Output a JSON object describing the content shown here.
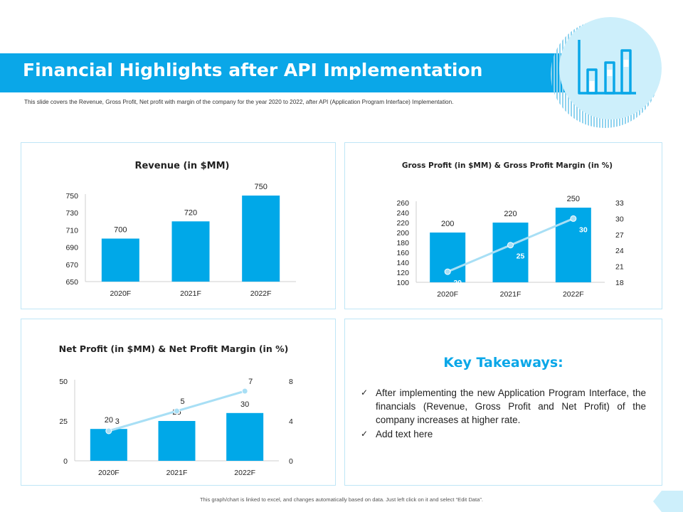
{
  "header": {
    "title": "Financial Highlights after API Implementation",
    "subtitle": "This slide covers the Revenue, Gross Profit, Net profit with margin of the company for the year 2020 to 2022, after API (Application Program Interface) Implementation."
  },
  "icons": {
    "chart": "bar-chart-icon",
    "check": "check-icon"
  },
  "colors": {
    "accent": "#0aa7e8",
    "bar": "#00a8e8",
    "line": "#a8dff5",
    "circle": "#cdeffb"
  },
  "chart_data": [
    {
      "type": "bar",
      "title": "Revenue (in $MM)",
      "categories": [
        "2020F",
        "2021F",
        "2022F"
      ],
      "values": [
        700,
        720,
        750
      ],
      "ylim": [
        650,
        750
      ],
      "yticks": [
        650,
        670,
        690,
        710,
        730,
        750
      ],
      "ylabel": "",
      "xlabel": ""
    },
    {
      "type": "bar",
      "title": "Gross Profit (in $MM) & Gross Profit Margin (in %)",
      "categories": [
        "2020F",
        "2021F",
        "2022F"
      ],
      "series": [
        {
          "name": "Gross Profit",
          "values": [
            200,
            220,
            250
          ],
          "kind": "bar",
          "axis": "left"
        },
        {
          "name": "Gross Profit Margin",
          "values": [
            20,
            25,
            30
          ],
          "kind": "line",
          "axis": "right"
        }
      ],
      "ylim": [
        100,
        260
      ],
      "yticks": [
        100,
        120,
        140,
        160,
        180,
        200,
        220,
        240,
        260
      ],
      "y2lim": [
        18,
        33
      ],
      "y2ticks": [
        18,
        21,
        24,
        27,
        30,
        33
      ]
    },
    {
      "type": "bar",
      "title": "Net Profit (in $MM) & Net Profit Margin (in %)",
      "categories": [
        "2020F",
        "2021F",
        "2022F"
      ],
      "series": [
        {
          "name": "Net Profit",
          "values": [
            20,
            25,
            30
          ],
          "kind": "bar",
          "axis": "left"
        },
        {
          "name": "Net Profit Margin",
          "values": [
            3,
            5,
            7
          ],
          "kind": "line",
          "axis": "right"
        }
      ],
      "ylim": [
        0,
        50
      ],
      "yticks": [
        0,
        25,
        50
      ],
      "y2lim": [
        0,
        8
      ],
      "y2ticks": [
        0,
        4,
        8
      ]
    }
  ],
  "takeaways": {
    "title": "Key Takeaways:",
    "items": [
      "After implementing the new Application Program Interface, the financials (Revenue, Gross Profit and Net Profit) of the company increases at higher rate.",
      "Add text here"
    ]
  },
  "footer": {
    "note": "This graph/chart is linked to excel, and changes automatically based on data. Just left click on it and select “Edit Data”."
  }
}
